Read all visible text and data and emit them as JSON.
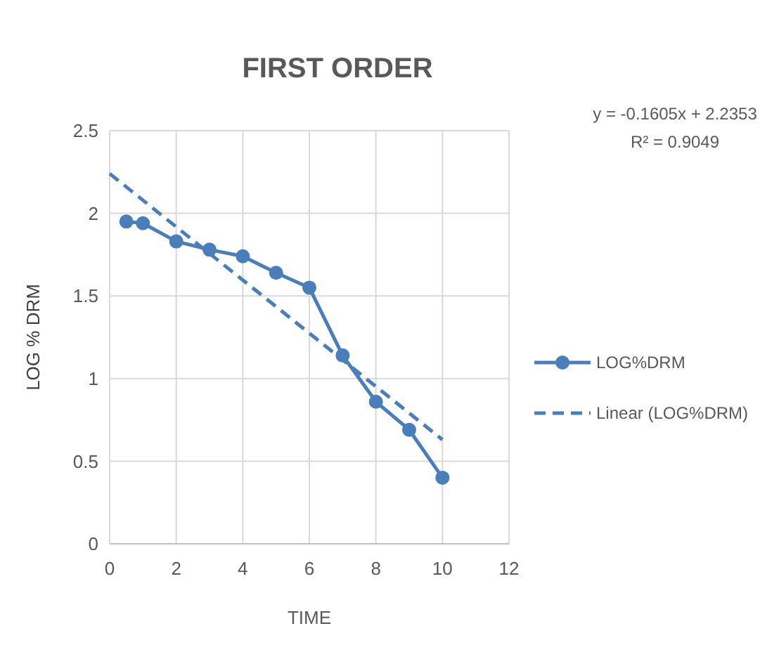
{
  "chart_data": {
    "type": "line",
    "title": "FIRST ORDER",
    "xlabel": "TIME",
    "ylabel": "LOG % DRM",
    "xlim": [
      0,
      12
    ],
    "xticks": [
      0,
      2,
      4,
      6,
      8,
      10,
      12
    ],
    "ylim": [
      0,
      2.5
    ],
    "yticks": [
      0,
      0.5,
      1,
      1.5,
      2,
      2.5
    ],
    "grid": true,
    "legend": "right",
    "annotations": [
      "y = -0.1605x + 2.2353",
      "R² = 0.9049"
    ],
    "series": [
      {
        "name": "LOG%DRM",
        "color": "#4a7ebb",
        "marker": "circle",
        "line_style": "solid",
        "x": [
          0.5,
          1,
          2,
          3,
          4,
          5,
          6,
          7,
          8,
          9,
          10
        ],
        "values": [
          1.95,
          1.94,
          1.83,
          1.78,
          1.74,
          1.64,
          1.55,
          1.14,
          0.86,
          0.69,
          0.4
        ]
      },
      {
        "name": "Linear (LOG%DRM)",
        "color": "#4a7ebb",
        "marker": "none",
        "line_style": "dashed",
        "x": [
          0,
          10
        ],
        "values": [
          2.24,
          0.63
        ]
      }
    ]
  }
}
